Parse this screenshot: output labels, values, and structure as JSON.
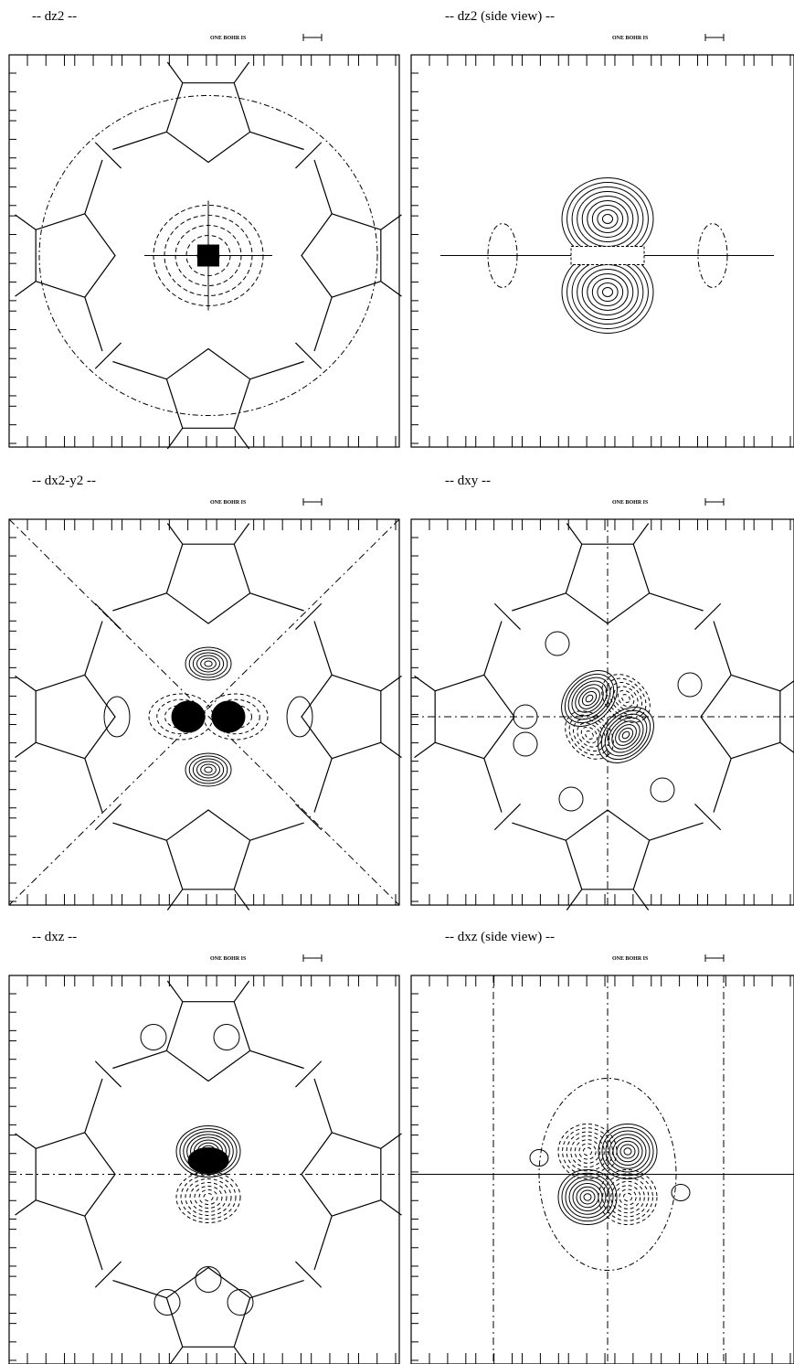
{
  "panels": [
    {
      "title": "-- dz2 --",
      "scale_label": "ONE BOHR IS"
    },
    {
      "title": "-- dz2 (side view) --",
      "scale_label": "ONE BOHR IS"
    },
    {
      "title": "-- dx2-y2 --",
      "scale_label": "ONE BOHR IS"
    },
    {
      "title": "-- dxy --",
      "scale_label": "ONE BOHR IS"
    },
    {
      "title": "-- dxz --",
      "scale_label": "ONE BOHR IS"
    },
    {
      "title": "-- dxz (side view) --",
      "scale_label": "ONE BOHR IS"
    }
  ]
}
